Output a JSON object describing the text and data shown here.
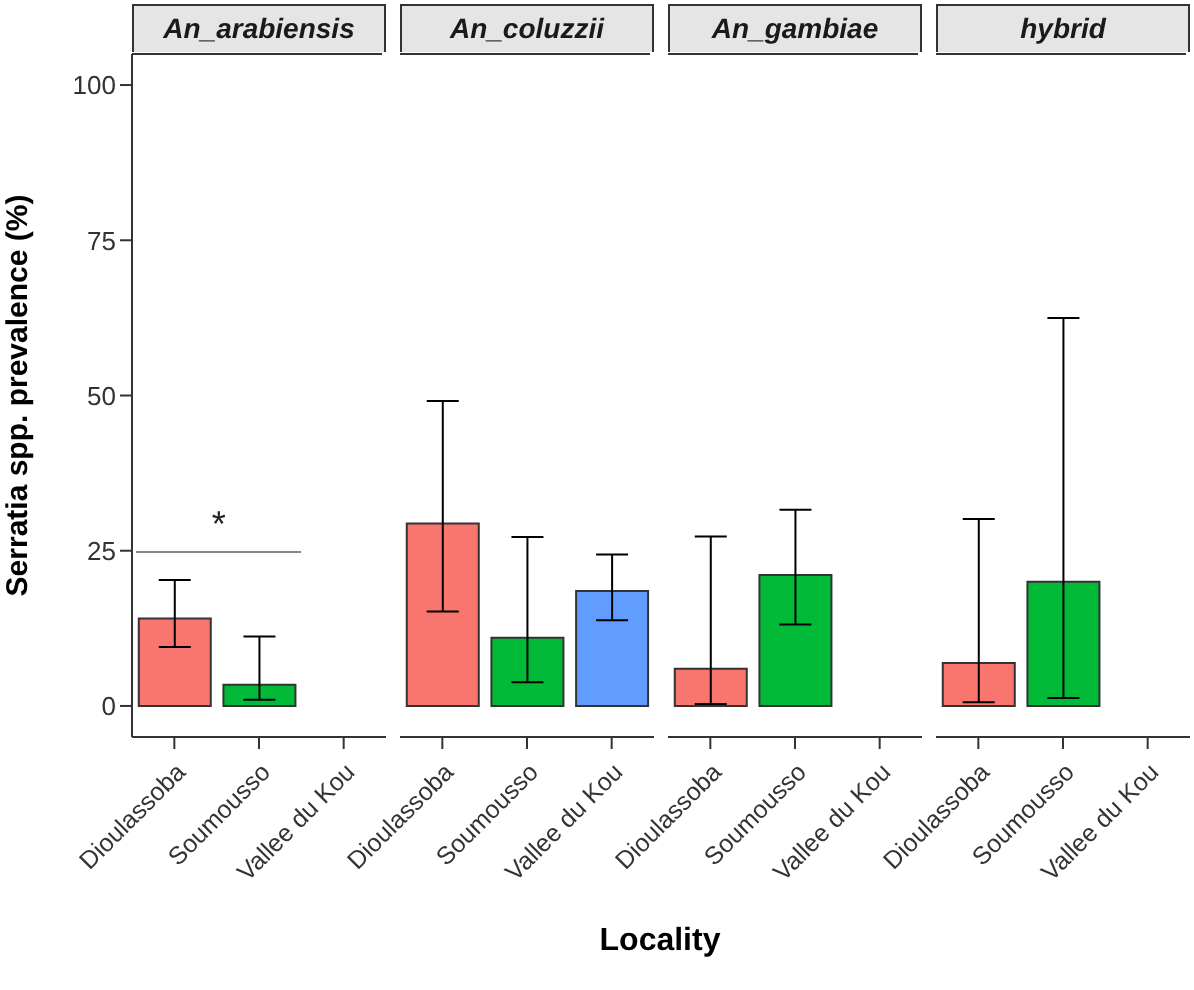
{
  "chart_data": [
    {
      "type": "bar",
      "title": "An_arabiensis",
      "ylabel": "Serratia spp. prevalence (%)",
      "categories": [
        "Dioulassoba",
        "Soumousso",
        "Vallee du Kou"
      ],
      "values": [
        14.1,
        3.4,
        null
      ],
      "colors": [
        "#f8766d",
        "#00ba38",
        "#619cff"
      ],
      "errors": [
        [
          9.5,
          20.3
        ],
        [
          1.0,
          11.2
        ],
        null
      ],
      "ylim": [
        -5,
        105
      ],
      "yticks": [
        0,
        25,
        50,
        75,
        100
      ],
      "annotations": [
        "*"
      ],
      "grid": false,
      "legend": false
    },
    {
      "type": "bar",
      "title": "An_coluzzii",
      "xlabel": "Locality",
      "categories": [
        "Dioulassoba",
        "Soumousso",
        "Vallee du Kou"
      ],
      "values": [
        29.4,
        11.0,
        18.5
      ],
      "colors": [
        "#f8766d",
        "#00ba38",
        "#619cff"
      ],
      "errors": [
        [
          15.2,
          49.1
        ],
        [
          3.8,
          27.2
        ],
        [
          13.8,
          24.4
        ]
      ],
      "ylim": [
        -5,
        105
      ],
      "yticks": [
        0,
        25,
        50,
        75,
        100
      ],
      "tick_labels": "x",
      "grid": false,
      "legend": false
    },
    {
      "type": "bar",
      "title": "An_gambiae",
      "categories": [
        "Dioulassoba",
        "Soumousso",
        "Vallee du Kou"
      ],
      "values": [
        6.0,
        21.1,
        null
      ],
      "colors": [
        "#f8766d",
        "#00ba38",
        "#619cff"
      ],
      "errors": [
        [
          0.3,
          27.3
        ],
        [
          13.1,
          31.6
        ],
        null
      ],
      "ylim": [
        -5,
        105
      ],
      "yticks": [
        0,
        25,
        50,
        75,
        100
      ],
      "tick_labels": "x",
      "grid": false,
      "legend": false
    },
    {
      "type": "bar",
      "title": "hybrid",
      "categories": [
        "Dioulassoba",
        "Soumousso",
        "Vallee du Kou"
      ],
      "values": [
        6.9,
        20.0,
        null
      ],
      "colors": [
        "#f8766d",
        "#00ba38",
        "#619cff"
      ],
      "errors": [
        [
          0.6,
          30.1
        ],
        [
          1.3,
          62.5
        ],
        null
      ],
      "ylim": [
        -5,
        105
      ],
      "yticks": [
        0,
        25,
        50,
        75,
        100
      ],
      "tick_labels": "x",
      "grid": false,
      "legend": false
    }
  ]
}
